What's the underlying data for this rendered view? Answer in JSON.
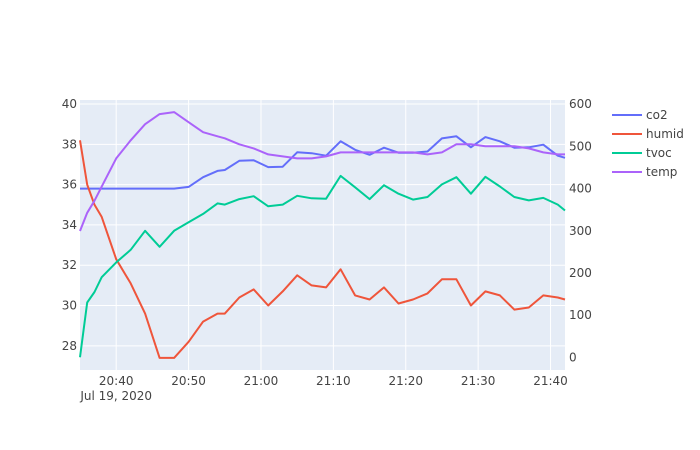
{
  "chart_data": {
    "type": "line",
    "title": "",
    "xlabel": "",
    "ylabel": "",
    "y2label": "",
    "x_range": [
      "2020-07-19 20:35",
      "2020-07-19 21:42"
    ],
    "x_ticks": [
      {
        "t": "2020-07-19 20:40",
        "label": "20:40",
        "sublabel": "Jul 19, 2020"
      },
      {
        "t": "2020-07-19 20:50",
        "label": "20:50"
      },
      {
        "t": "2020-07-19 21:00",
        "label": "21:00"
      },
      {
        "t": "2020-07-19 21:10",
        "label": "21:10"
      },
      {
        "t": "2020-07-19 21:20",
        "label": "21:20"
      },
      {
        "t": "2020-07-19 21:30",
        "label": "21:30"
      },
      {
        "t": "2020-07-19 21:40",
        "label": "21:40"
      }
    ],
    "y_left": {
      "range": [
        26.8,
        40.2
      ],
      "ticks": [
        28,
        30,
        32,
        34,
        36,
        38,
        40
      ]
    },
    "y_right": {
      "range": [
        -30,
        610
      ],
      "ticks": [
        0,
        100,
        200,
        300,
        400,
        500,
        600
      ]
    },
    "grid": true,
    "legend_position": "top-right",
    "x": [
      "2020-07-19 20:35",
      "2020-07-19 20:36",
      "2020-07-19 20:37",
      "2020-07-19 20:38",
      "2020-07-19 20:40",
      "2020-07-19 20:42",
      "2020-07-19 20:44",
      "2020-07-19 20:46",
      "2020-07-19 20:48",
      "2020-07-19 20:50",
      "2020-07-19 20:52",
      "2020-07-19 20:54",
      "2020-07-19 20:55",
      "2020-07-19 20:57",
      "2020-07-19 20:59",
      "2020-07-19 21:01",
      "2020-07-19 21:03",
      "2020-07-19 21:05",
      "2020-07-19 21:07",
      "2020-07-19 21:09",
      "2020-07-19 21:11",
      "2020-07-19 21:13",
      "2020-07-19 21:15",
      "2020-07-19 21:17",
      "2020-07-19 21:19",
      "2020-07-19 21:21",
      "2020-07-19 21:23",
      "2020-07-19 21:25",
      "2020-07-19 21:27",
      "2020-07-19 21:29",
      "2020-07-19 21:31",
      "2020-07-19 21:33",
      "2020-07-19 21:35",
      "2020-07-19 21:37",
      "2020-07-19 21:39",
      "2020-07-19 21:41",
      "2020-07-19 21:42"
    ],
    "series": [
      {
        "name": "co2",
        "axis": "right",
        "color": "#636efa",
        "values": [
          400,
          400,
          400,
          400,
          400,
          400,
          400,
          400,
          400,
          404,
          427,
          442,
          444,
          466,
          467,
          451,
          452,
          486,
          484,
          478,
          512,
          492,
          480,
          497,
          485,
          485,
          488,
          519,
          524,
          498,
          522,
          512,
          497,
          498,
          504,
          478,
          473
        ]
      },
      {
        "name": "humid",
        "axis": "left",
        "color": "#ef553b",
        "values": [
          38.2,
          36.0,
          35.0,
          34.4,
          32.3,
          31.1,
          29.6,
          27.4,
          27.4,
          28.2,
          29.2,
          29.6,
          29.6,
          30.4,
          30.8,
          30.0,
          30.7,
          31.5,
          31.0,
          30.9,
          31.8,
          30.5,
          30.3,
          30.9,
          30.1,
          30.3,
          30.6,
          31.3,
          31.3,
          30.0,
          30.7,
          30.5,
          29.8,
          29.9,
          30.5,
          30.4,
          30.3
        ]
      },
      {
        "name": "tvoc",
        "axis": "right",
        "color": "#00cc96",
        "values": [
          0,
          130,
          155,
          190,
          225,
          255,
          300,
          262,
          300,
          320,
          340,
          365,
          362,
          375,
          382,
          358,
          362,
          383,
          377,
          376,
          430,
          403,
          375,
          408,
          388,
          374,
          380,
          410,
          427,
          388,
          428,
          405,
          380,
          372,
          378,
          362,
          348
        ]
      },
      {
        "name": "temp",
        "axis": "left",
        "color": "#ab63fa",
        "values": [
          33.7,
          34.6,
          35.2,
          35.9,
          37.3,
          38.2,
          39.0,
          39.5,
          39.6,
          39.1,
          38.6,
          38.4,
          38.3,
          38.0,
          37.8,
          37.5,
          37.4,
          37.3,
          37.3,
          37.4,
          37.6,
          37.6,
          37.6,
          37.6,
          37.6,
          37.6,
          37.5,
          37.6,
          38.0,
          38.0,
          37.9,
          37.9,
          37.9,
          37.8,
          37.6,
          37.5,
          37.5
        ]
      }
    ]
  }
}
